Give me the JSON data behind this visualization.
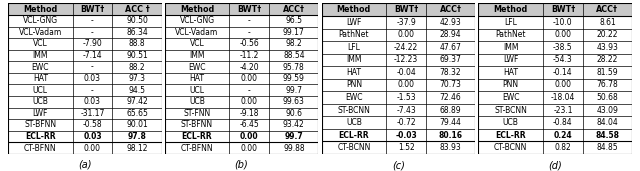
{
  "tables": [
    {
      "label": "(a)",
      "header": [
        "Method",
        "BWT†",
        "ACC †"
      ],
      "rows": [
        [
          "VCL-GNG",
          "-",
          "90.50"
        ],
        [
          "VCL-Vadam",
          "-",
          "86.34"
        ],
        [
          "VCL",
          "-7.90",
          "88.8"
        ],
        [
          "IMM",
          "-7.14",
          "90.51"
        ],
        [
          "EWC",
          "-",
          "88.2"
        ],
        [
          "HAT",
          "0.03",
          "97.3"
        ],
        [
          "UCL",
          "-",
          "94.5"
        ],
        [
          "UCB",
          "0.03",
          "97.42"
        ],
        [
          "LWF",
          "-31.17",
          "65.65"
        ],
        [
          "ST-BFNN",
          "-0.58",
          "90.01"
        ],
        [
          "ECL-RR",
          "0.03",
          "97.8"
        ],
        [
          "CT-BFNN",
          "0.00",
          "98.12"
        ]
      ],
      "bold_row": 10,
      "separator_after": 10
    },
    {
      "label": "(b)",
      "header": [
        "Method",
        "BWT†",
        "ACC†"
      ],
      "rows": [
        [
          "VCL-GNG",
          "-",
          "96.5"
        ],
        [
          "VCL-Vadam",
          "-",
          "99.17"
        ],
        [
          "VCL",
          "-0.56",
          "98.2"
        ],
        [
          "IMM",
          "-11.2",
          "88.54"
        ],
        [
          "EWC",
          "-4.20",
          "95.78"
        ],
        [
          "HAT",
          "0.00",
          "99.59"
        ],
        [
          "UCL",
          "-",
          "99.7"
        ],
        [
          "UCB",
          "0.00",
          "99.63"
        ],
        [
          "ST-FNN",
          "-9.18",
          "90.6"
        ],
        [
          "ST-BFNN",
          "-6.45",
          "93.42"
        ],
        [
          "ECL-RR",
          "0.00",
          "99.7"
        ],
        [
          "CT-BFNN",
          "0.00",
          "99.88"
        ]
      ],
      "bold_row": 10,
      "separator_after": 10
    },
    {
      "label": "(c)",
      "header": [
        "Method",
        "BWT†",
        "ACC†"
      ],
      "rows": [
        [
          "LWF",
          "-37.9",
          "42.93"
        ],
        [
          "PathNet",
          "0.00",
          "28.94"
        ],
        [
          "LFL",
          "-24.22",
          "47.67"
        ],
        [
          "IMM",
          "-12.23",
          "69.37"
        ],
        [
          "HAT",
          "-0.04",
          "78.32"
        ],
        [
          "PNN",
          "0.00",
          "70.73"
        ],
        [
          "EWC",
          "-1.53",
          "72.46"
        ],
        [
          "ST-BCNN",
          "-7.43",
          "68.89"
        ],
        [
          "UCB",
          "-0.72",
          "79.44"
        ],
        [
          "ECL-RR",
          "-0.03",
          "80.16"
        ],
        [
          "CT-BCNN",
          "1.52",
          "83.93"
        ]
      ],
      "bold_row": 9,
      "separator_after": 9
    },
    {
      "label": "(d)",
      "header": [
        "Method",
        "BWT†",
        "ACC†"
      ],
      "rows": [
        [
          "LFL",
          "-10.0",
          "8.61"
        ],
        [
          "PathNet",
          "0.00",
          "20.22"
        ],
        [
          "IMM",
          "-38.5",
          "43.93"
        ],
        [
          "LWF",
          "-54.3",
          "28.22"
        ],
        [
          "HAT",
          "-0.14",
          "81.59"
        ],
        [
          "PNN",
          "0.00",
          "76.78"
        ],
        [
          "EWC",
          "-18.04",
          "50.68"
        ],
        [
          "ST-BCNN",
          "-23.1",
          "43.09"
        ],
        [
          "UCB",
          "-0.84",
          "84.04"
        ],
        [
          "ECL-RR",
          "0.24",
          "84.58"
        ],
        [
          "CT-BCNN",
          "0.82",
          "84.85"
        ]
      ],
      "bold_row": 9,
      "separator_after": 9
    }
  ],
  "font_size": 5.5,
  "header_font_size": 5.8,
  "label_font_size": 7.0,
  "header_bg": "#c8c8c8",
  "row_bg": "#ffffff",
  "bold_row_bg": "#ffffff",
  "text_color": "#000000",
  "line_color": "#000000",
  "fig_width": 6.4,
  "fig_height": 1.71,
  "dpi": 100
}
